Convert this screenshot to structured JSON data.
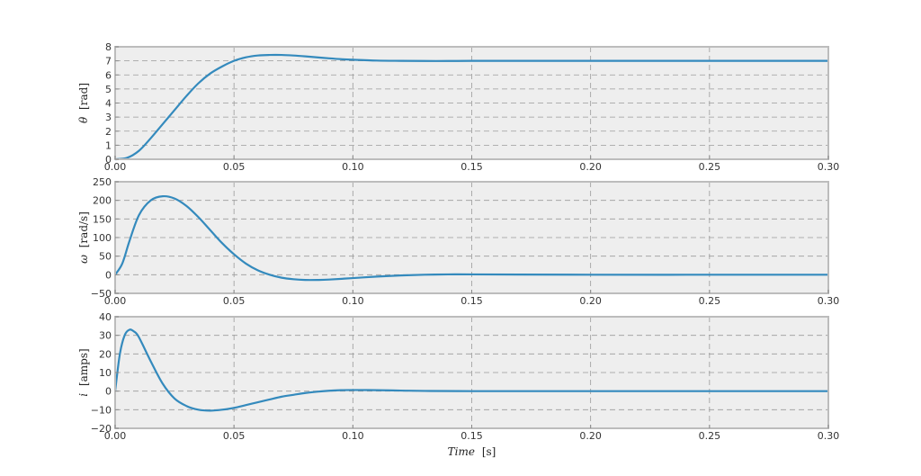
{
  "chart_data": [
    {
      "type": "line",
      "ylabel_symbol": "θ",
      "ylabel_unit": "[rad]",
      "xlim": [
        0,
        0.3
      ],
      "ylim": [
        0,
        8
      ],
      "xticks": [
        "0.00",
        "0.05",
        "0.10",
        "0.15",
        "0.20",
        "0.25",
        "0.30"
      ],
      "yticks": [
        "0",
        "1",
        "2",
        "3",
        "4",
        "5",
        "6",
        "7",
        "8"
      ],
      "grid": true,
      "color": "#348abd",
      "x": [
        0,
        0.005,
        0.01,
        0.015,
        0.02,
        0.025,
        0.03,
        0.035,
        0.04,
        0.045,
        0.05,
        0.055,
        0.06,
        0.065,
        0.07,
        0.075,
        0.08,
        0.085,
        0.09,
        0.095,
        0.1,
        0.11,
        0.12,
        0.13,
        0.14,
        0.15,
        0.17,
        0.2,
        0.25,
        0.3
      ],
      "y": [
        0,
        0.1,
        0.6,
        1.5,
        2.5,
        3.5,
        4.5,
        5.4,
        6.1,
        6.6,
        7.0,
        7.25,
        7.38,
        7.42,
        7.42,
        7.38,
        7.32,
        7.25,
        7.18,
        7.12,
        7.08,
        7.02,
        7.0,
        6.99,
        6.99,
        7.0,
        7.0,
        7.0,
        7.0,
        7.0
      ]
    },
    {
      "type": "line",
      "ylabel_symbol": "ω",
      "ylabel_unit": "[rad/s]",
      "xlim": [
        0,
        0.3
      ],
      "ylim": [
        -50,
        250
      ],
      "xticks": [
        "0.00",
        "0.05",
        "0.10",
        "0.15",
        "0.20",
        "0.25",
        "0.30"
      ],
      "yticks": [
        "−50",
        "0",
        "50",
        "100",
        "150",
        "200",
        "250"
      ],
      "grid": true,
      "color": "#348abd",
      "x": [
        0,
        0.003,
        0.006,
        0.01,
        0.015,
        0.02,
        0.025,
        0.03,
        0.035,
        0.04,
        0.045,
        0.05,
        0.055,
        0.06,
        0.065,
        0.07,
        0.075,
        0.08,
        0.085,
        0.09,
        0.1,
        0.11,
        0.12,
        0.13,
        0.14,
        0.15,
        0.17,
        0.2,
        0.25,
        0.3
      ],
      "y": [
        0,
        30,
        90,
        160,
        200,
        211,
        205,
        185,
        155,
        120,
        85,
        55,
        30,
        12,
        0,
        -8,
        -12,
        -14,
        -14,
        -13,
        -9,
        -5,
        -2,
        0,
        1,
        1,
        0.5,
        0,
        0,
        0
      ]
    },
    {
      "type": "line",
      "ylabel_symbol": "i",
      "ylabel_unit": "[amps]",
      "xlabel_word": "Time",
      "xlabel_unit": "[s]",
      "xlim": [
        0,
        0.3
      ],
      "ylim": [
        -20,
        40
      ],
      "xticks": [
        "0.00",
        "0.05",
        "0.10",
        "0.15",
        "0.20",
        "0.25",
        "0.30"
      ],
      "yticks": [
        "−20",
        "−10",
        "0",
        "10",
        "20",
        "30",
        "40"
      ],
      "grid": true,
      "color": "#348abd",
      "x": [
        0,
        0.002,
        0.004,
        0.006,
        0.008,
        0.01,
        0.015,
        0.02,
        0.025,
        0.03,
        0.035,
        0.04,
        0.045,
        0.05,
        0.055,
        0.06,
        0.065,
        0.07,
        0.075,
        0.08,
        0.085,
        0.09,
        0.095,
        0.1,
        0.11,
        0.12,
        0.13,
        0.15,
        0.2,
        0.3
      ],
      "y": [
        0,
        20,
        30,
        33,
        32,
        29,
        16,
        4,
        -4,
        -8,
        -10,
        -10.5,
        -10,
        -9,
        -7.5,
        -6,
        -4.5,
        -3,
        -2,
        -1,
        -0.3,
        0.2,
        0.5,
        0.6,
        0.5,
        0.3,
        0.1,
        0,
        0,
        0
      ]
    }
  ]
}
